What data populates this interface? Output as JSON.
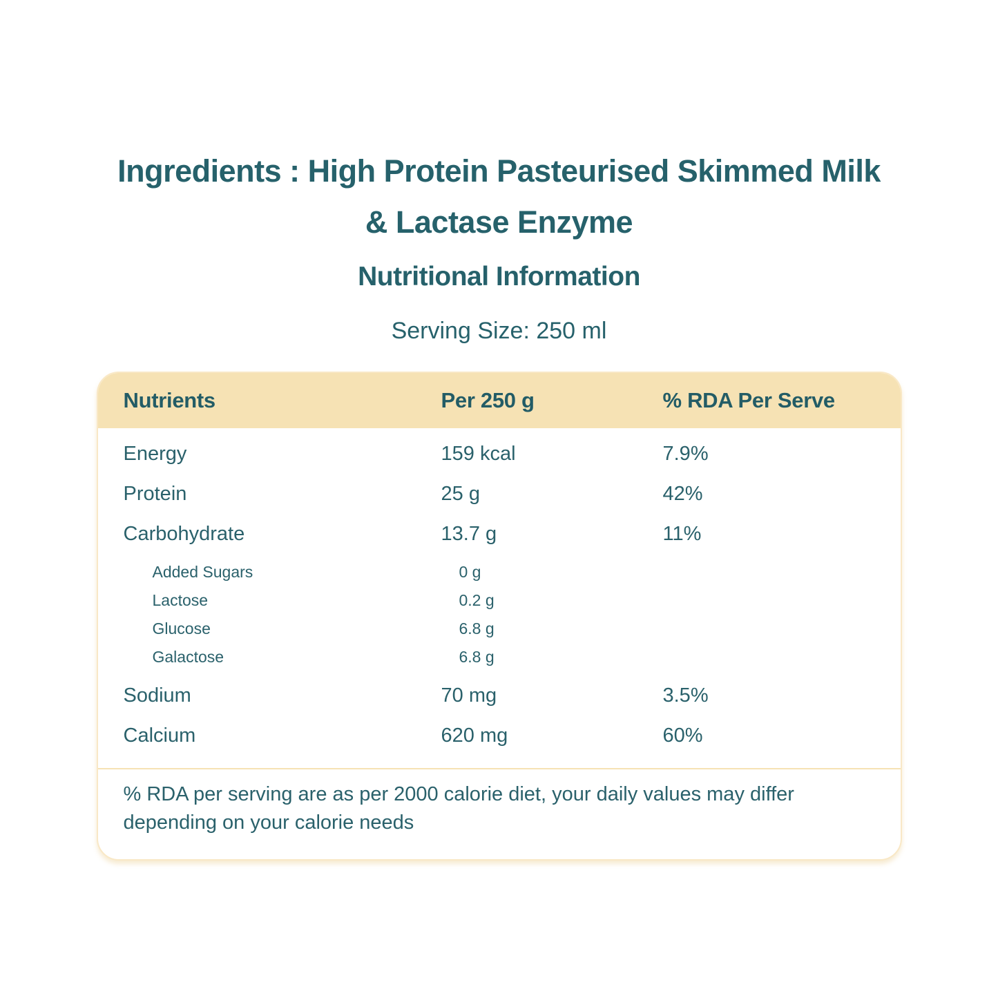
{
  "page": {
    "title_line1": "Ingredients : High Protein Pasteurised Skimmed Milk",
    "title_line2": "& Lactase Enzyme",
    "section_title": "Nutritional Information",
    "serving_size": "Serving Size: 250 ml"
  },
  "table": {
    "headers": {
      "nutrients": "Nutrients",
      "per": "Per 250 g",
      "rda": "% RDA Per Serve"
    },
    "rows": [
      {
        "nutrient": "Energy",
        "per": "159 kcal",
        "rda": "7.9%"
      },
      {
        "nutrient": "Protein",
        "per": "25 g",
        "rda": "42%"
      },
      {
        "nutrient": "Carbohydrate",
        "per": "13.7 g",
        "rda": "11%"
      }
    ],
    "sub_rows": [
      {
        "nutrient": "Added Sugars",
        "per": "0 g",
        "rda": ""
      },
      {
        "nutrient": "Lactose",
        "per": "0.2 g",
        "rda": ""
      },
      {
        "nutrient": "Glucose",
        "per": "6.8 g",
        "rda": ""
      },
      {
        "nutrient": "Galactose",
        "per": "6.8 g",
        "rda": ""
      }
    ],
    "rows_bottom": [
      {
        "nutrient": "Sodium",
        "per": "70 mg",
        "rda": "3.5%"
      },
      {
        "nutrient": "Calcium",
        "per": "620 mg",
        "rda": "60%"
      }
    ],
    "footnote": "% RDA per serving are as per 2000 calorie diet, your daily values may differ depending on your calorie needs"
  },
  "colors": {
    "teal_text": "#26616B",
    "header_bg": "#F6E2B4",
    "card_border": "#F9E8C6"
  }
}
